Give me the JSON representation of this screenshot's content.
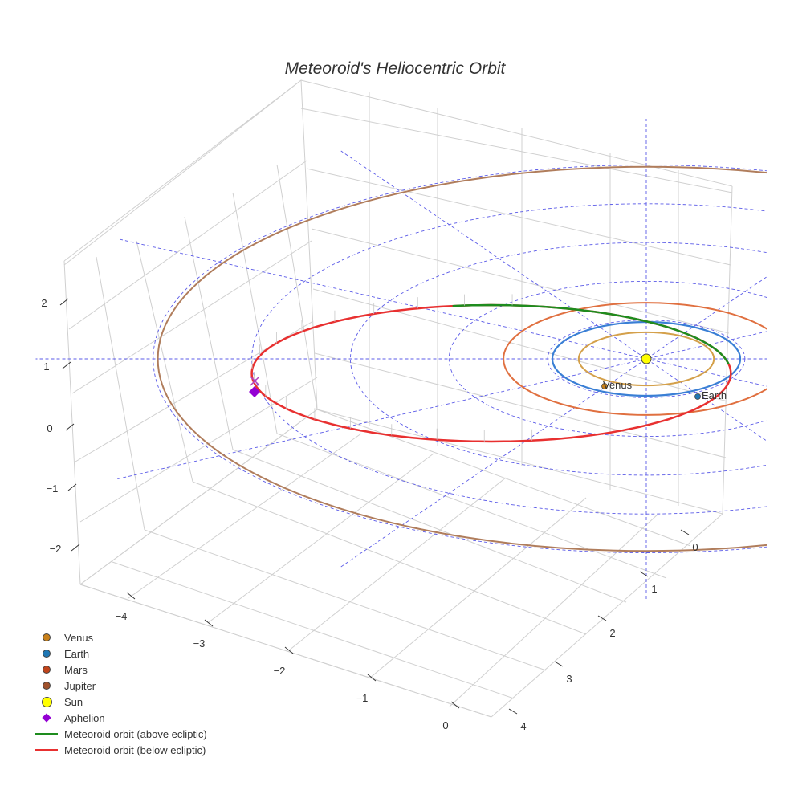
{
  "chart_data": {
    "type": "scatter",
    "title": "Meteoroid's Heliocentric Orbit",
    "axes": {
      "x_ticks": [
        "−4",
        "−3",
        "−2",
        "−1",
        "0"
      ],
      "y_ticks": [
        "0",
        "1",
        "2",
        "3",
        "4"
      ],
      "z_ticks": [
        "2",
        "1",
        "0",
        "−1",
        "−2"
      ],
      "x_range": [
        -4.5,
        0.5
      ],
      "y_range": [
        -0.5,
        4.5
      ],
      "z_range": [
        -2.5,
        2.5
      ],
      "grid": true
    },
    "planets": [
      {
        "name": "Venus",
        "orbit_radius_au": 0.72,
        "color": "#d4a04a",
        "marker_color": "#c8801a"
      },
      {
        "name": "Earth",
        "orbit_radius_au": 1.0,
        "color": "#3a7fd5",
        "marker_color": "#1f77b4"
      },
      {
        "name": "Mars",
        "orbit_radius_au": 1.52,
        "color": "#e07040",
        "marker_color": "#c0441b"
      },
      {
        "name": "Jupiter",
        "orbit_radius_au": 5.2,
        "color": "#b07d5c",
        "marker_color": "#a0522d"
      }
    ],
    "sun": {
      "name": "Sun",
      "color": "#ffff00"
    },
    "aphelion": {
      "name": "Aphelion",
      "color": "#9400d3",
      "distance_au": 4.2
    },
    "meteoroid_orbit": {
      "perihelion_au": 0.9,
      "aphelion_au": 4.2,
      "above_color": "#1e8c1e",
      "below_color": "#e83030"
    },
    "annotations": [
      {
        "label": "Venus"
      },
      {
        "label": "Earth"
      }
    ],
    "legend": {
      "placement": "bottom-left",
      "entries": [
        {
          "label": "Venus",
          "symbol": "dot",
          "color": "#c8801a"
        },
        {
          "label": "Earth",
          "symbol": "dot",
          "color": "#1f77b4"
        },
        {
          "label": "Mars",
          "symbol": "dot",
          "color": "#c0441b"
        },
        {
          "label": "Jupiter",
          "symbol": "dot",
          "color": "#a0522d"
        },
        {
          "label": "Sun",
          "symbol": "sun",
          "color": "#ffff00"
        },
        {
          "label": "Aphelion",
          "symbol": "diamond",
          "color": "#9400d3"
        },
        {
          "label": "Meteoroid orbit (above ecliptic)",
          "symbol": "line",
          "color": "#1e8c1e"
        },
        {
          "label": "Meteoroid orbit (below ecliptic)",
          "symbol": "line",
          "color": "#e83030"
        }
      ]
    }
  }
}
